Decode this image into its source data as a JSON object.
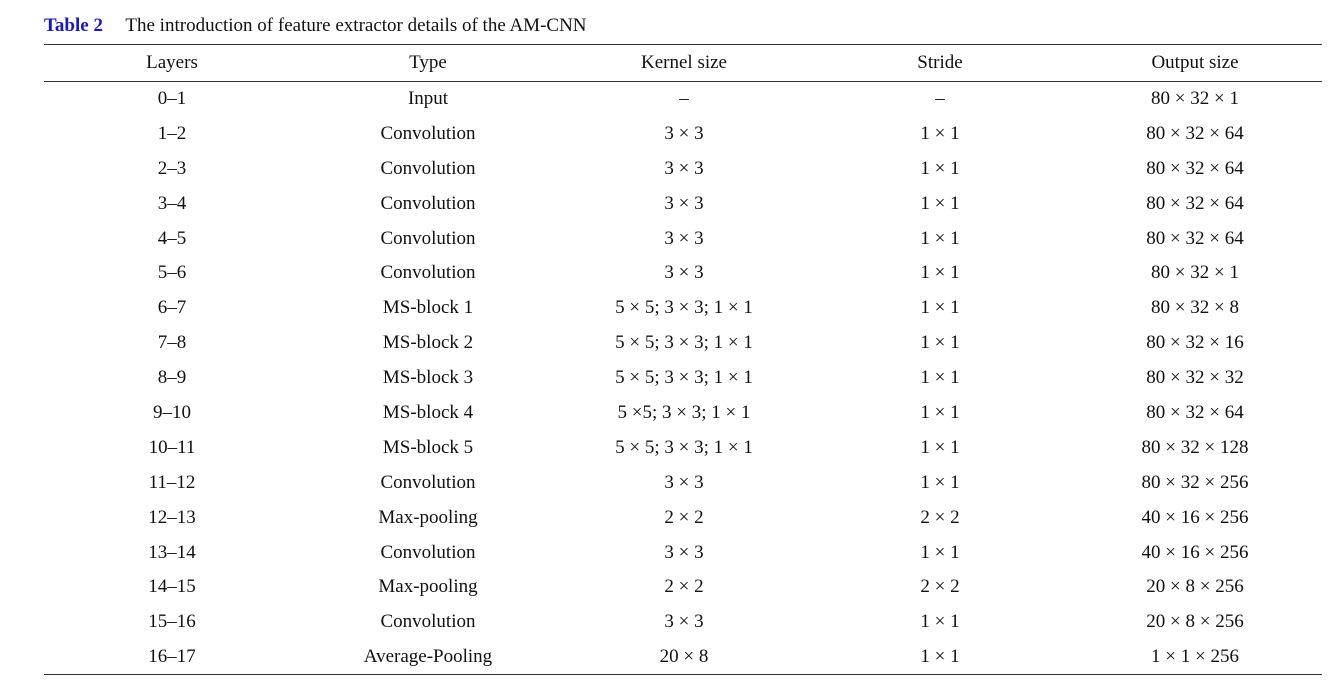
{
  "caption": {
    "label": "Table 2",
    "text": "The introduction of feature extractor details of the AM-CNN"
  },
  "table": {
    "columns": [
      "Layers",
      "Type",
      "Kernel size",
      "Stride",
      "Output size"
    ],
    "rows": [
      [
        "0–1",
        "Input",
        "–",
        "–",
        "80 × 32 × 1"
      ],
      [
        "1–2",
        "Convolution",
        "3 × 3",
        "1 × 1",
        "80 × 32 × 64"
      ],
      [
        "2–3",
        "Convolution",
        "3 × 3",
        "1 × 1",
        "80 × 32 × 64"
      ],
      [
        "3–4",
        "Convolution",
        "3 × 3",
        "1 × 1",
        "80 × 32 × 64"
      ],
      [
        "4–5",
        "Convolution",
        "3 × 3",
        "1 × 1",
        "80 × 32 × 64"
      ],
      [
        "5–6",
        "Convolution",
        "3 × 3",
        "1 × 1",
        "80 × 32 × 1"
      ],
      [
        "6–7",
        "MS-block 1",
        "5 × 5; 3 × 3; 1 × 1",
        "1 × 1",
        "80 × 32 × 8"
      ],
      [
        "7–8",
        "MS-block 2",
        "5 × 5; 3 × 3; 1 × 1",
        "1 × 1",
        "80 × 32 × 16"
      ],
      [
        "8–9",
        "MS-block 3",
        "5 × 5; 3 × 3; 1 × 1",
        "1 × 1",
        "80 × 32 × 32"
      ],
      [
        "9–10",
        "MS-block 4",
        "5 ×5; 3 × 3; 1 × 1",
        "1 × 1",
        "80 × 32 × 64"
      ],
      [
        "10–11",
        "MS-block 5",
        "5 × 5; 3 × 3; 1 × 1",
        "1 × 1",
        "80 × 32 × 128"
      ],
      [
        "11–12",
        "Convolution",
        "3 × 3",
        "1 × 1",
        "80 × 32 × 256"
      ],
      [
        "12–13",
        "Max-pooling",
        "2 × 2",
        "2 × 2",
        "40 × 16 × 256"
      ],
      [
        "13–14",
        "Convolution",
        "3 × 3",
        "1 × 1",
        "40 × 16 × 256"
      ],
      [
        "14–15",
        "Max-pooling",
        "2 × 2",
        "2 × 2",
        "20 × 8 × 256"
      ],
      [
        "15–16",
        "Convolution",
        "3 × 3",
        "1 × 1",
        "20 × 8 × 256"
      ],
      [
        "16–17",
        "Average-Pooling",
        "20 × 8",
        "1 × 1",
        "1 × 1 × 256"
      ]
    ]
  }
}
